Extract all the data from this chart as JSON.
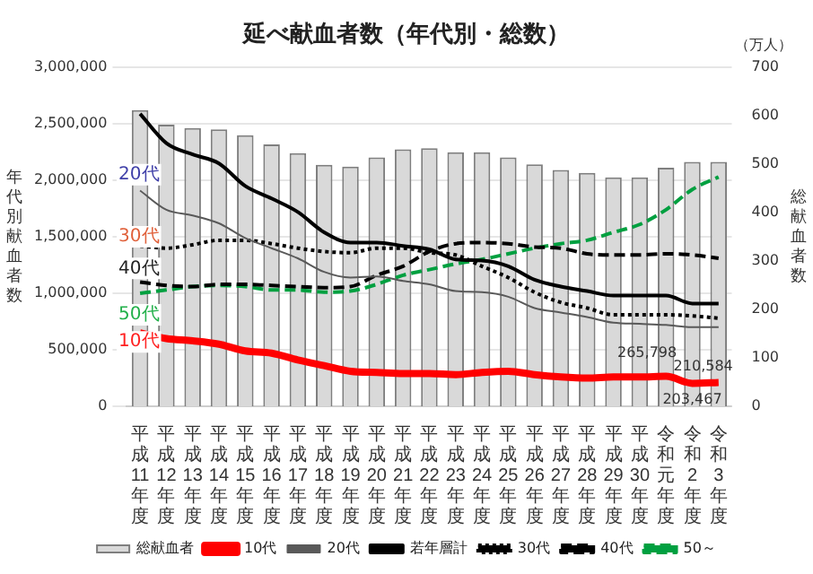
{
  "chart_data": {
    "type": "bar",
    "title": "延べ献血者数（年代別・総数）",
    "ylabel": "年代別献血者数",
    "y2label": "総献血者数",
    "categories": [
      "平成11年度",
      "平成12年度",
      "平成13年度",
      "平成14年度",
      "平成15年度",
      "平成16年度",
      "平成17年度",
      "平成18年度",
      "平成19年度",
      "平成20年度",
      "平成21年度",
      "平成22年度",
      "平成23年度",
      "平成24年度",
      "平成25年度",
      "平成26年度",
      "平成27年度",
      "平成28年度",
      "平成29年度",
      "平成30年度",
      "令和元年度",
      "令和2年度",
      "令和3年度"
    ],
    "series": [
      {
        "name": "総献血者",
        "axis": "y2",
        "color": "#d9d9d9",
        "values": [
          612,
          582,
          575,
          572,
          560,
          541,
          523,
          499,
          495,
          514,
          531,
          533,
          525,
          525,
          514,
          500,
          488,
          482,
          473,
          473,
          493,
          505,
          505
        ]
      },
      {
        "name": "10代",
        "type": "line",
        "color": "#ff0000",
        "line_style": "solid",
        "values": [
          650000,
          600000,
          580000,
          550000,
          490000,
          470000,
          410000,
          360000,
          310000,
          300000,
          290000,
          290000,
          280000,
          300000,
          310000,
          280000,
          260000,
          250000,
          260000,
          260000,
          265798,
          203467,
          210584
        ],
        "value_labels": [
          null,
          null,
          null,
          null,
          null,
          null,
          null,
          null,
          null,
          null,
          null,
          null,
          null,
          null,
          null,
          null,
          null,
          null,
          null,
          null,
          "265,798",
          "203,467",
          "210,584"
        ]
      },
      {
        "name": "20代",
        "type": "line",
        "color": "#595959",
        "line_style": "solid",
        "values": [
          1910000,
          1740000,
          1690000,
          1620000,
          1490000,
          1400000,
          1310000,
          1190000,
          1140000,
          1150000,
          1110000,
          1080000,
          1020000,
          1010000,
          970000,
          870000,
          830000,
          790000,
          740000,
          730000,
          720000,
          700000,
          700000
        ]
      },
      {
        "name": "若年層計",
        "type": "line",
        "color": "#000000",
        "line_style": "solid",
        "values": [
          2590000,
          2330000,
          2230000,
          2150000,
          1950000,
          1840000,
          1720000,
          1540000,
          1450000,
          1450000,
          1420000,
          1390000,
          1300000,
          1290000,
          1240000,
          1120000,
          1060000,
          1020000,
          980000,
          980000,
          980000,
          910000,
          910000
        ]
      },
      {
        "name": "30代",
        "type": "line",
        "color": "#000000",
        "line_style": "dotted",
        "values": [
          1420000,
          1400000,
          1430000,
          1470000,
          1470000,
          1440000,
          1400000,
          1370000,
          1360000,
          1400000,
          1400000,
          1360000,
          1340000,
          1240000,
          1140000,
          1010000,
          920000,
          870000,
          810000,
          810000,
          810000,
          800000,
          780000
        ]
      },
      {
        "name": "40代",
        "type": "line",
        "color": "#000000",
        "line_style": "dashed",
        "values": [
          1100000,
          1070000,
          1060000,
          1080000,
          1080000,
          1070000,
          1060000,
          1050000,
          1060000,
          1160000,
          1240000,
          1370000,
          1440000,
          1450000,
          1440000,
          1410000,
          1400000,
          1350000,
          1340000,
          1340000,
          1350000,
          1340000,
          1310000
        ]
      },
      {
        "name": "50～",
        "type": "line",
        "color": "#00a040",
        "line_style": "dashed",
        "values": [
          1000000,
          1030000,
          1060000,
          1070000,
          1060000,
          1030000,
          1030000,
          1010000,
          1020000,
          1080000,
          1160000,
          1210000,
          1260000,
          1300000,
          1350000,
          1400000,
          1440000,
          1470000,
          1540000,
          1610000,
          1740000,
          1920000,
          2030000
        ]
      }
    ],
    "ylim": [
      0,
      3000000
    ],
    "yticks": [
      {
        "value": 0,
        "label": "0"
      },
      {
        "value": 500000,
        "label": "500,000"
      },
      {
        "value": 1000000,
        "label": "1,000,000"
      },
      {
        "value": 1500000,
        "label": "1,500,000"
      },
      {
        "value": 2000000,
        "label": "2,000,000"
      },
      {
        "value": 2500000,
        "label": "2,500,000"
      },
      {
        "value": 3000000,
        "label": "3,000,000"
      }
    ],
    "y2lim": [
      0,
      700
    ],
    "y2ticks": [
      0,
      100,
      200,
      300,
      400,
      500,
      600,
      700
    ],
    "grid": "y",
    "legend": "bottom",
    "marker": "none",
    "annotations": [
      "（万人）",
      {
        "text": "20代",
        "x": "平成11年度",
        "y": 2050000
      },
      {
        "text": "30代",
        "x": "平成11年度",
        "y": 1500000
      },
      {
        "text": "40代",
        "x": "平成11年度",
        "y": 1220000
      },
      {
        "text": "50代",
        "x": "平成11年度",
        "y": 810000
      },
      {
        "text": "10代",
        "x": "平成11年度",
        "y": 570000
      }
    ]
  }
}
